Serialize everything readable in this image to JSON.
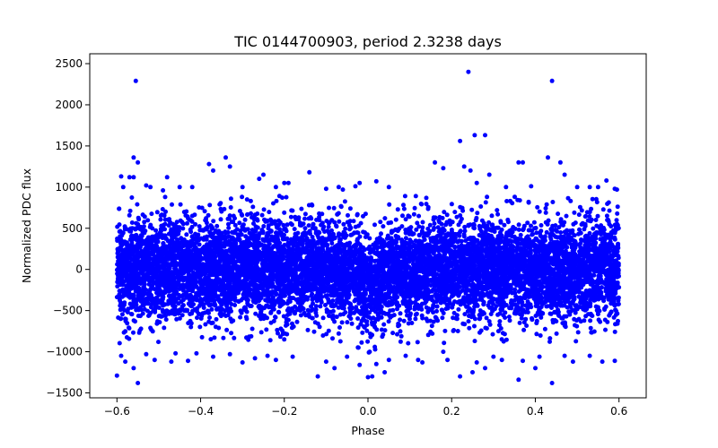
{
  "chart_data": {
    "type": "scatter",
    "title": "TIC 0144700903, period 2.3238 days",
    "xlabel": "Phase",
    "ylabel": "Normalized PDC flux",
    "xlim": [
      -0.665,
      0.665
    ],
    "ylim": [
      -1560,
      2620
    ],
    "xticks": [
      -0.6,
      -0.4,
      -0.2,
      0.0,
      0.2,
      0.4,
      0.6
    ],
    "xtick_labels": [
      "−0.6",
      "−0.4",
      "−0.2",
      "0.0",
      "0.2",
      "0.4",
      "0.6"
    ],
    "yticks": [
      -1500,
      -1000,
      -500,
      0,
      500,
      1000,
      1500,
      2000,
      2500
    ],
    "ytick_labels": [
      "−1500",
      "−1000",
      "−500",
      "0",
      "500",
      "1000",
      "1500",
      "2000",
      "2500"
    ],
    "grid": false,
    "series": [
      {
        "name": "PDC flux",
        "color": "#0000ff",
        "bulk": {
          "count": 9000,
          "x_range": [
            -0.6,
            0.6
          ],
          "sigma": 300,
          "clip": [
            -900,
            900
          ],
          "transit_center": 0.0,
          "transit_half_width": 0.035,
          "transit_depth": 250
        },
        "x": [
          -0.555,
          -0.56,
          -0.59,
          -0.585,
          -0.57,
          -0.56,
          -0.55,
          -0.53,
          -0.52,
          -0.49,
          -0.48,
          -0.45,
          -0.42,
          -0.38,
          -0.37,
          -0.34,
          -0.33,
          -0.3,
          -0.26,
          -0.25,
          -0.22,
          -0.2,
          -0.19,
          -0.14,
          -0.1,
          -0.07,
          -0.06,
          -0.03,
          -0.02,
          0.02,
          0.05,
          0.16,
          0.18,
          0.22,
          0.23,
          0.24,
          0.245,
          0.255,
          0.26,
          0.28,
          0.29,
          0.33,
          0.36,
          0.37,
          0.39,
          0.43,
          0.44,
          0.46,
          0.47,
          0.5,
          0.53,
          0.55,
          0.57,
          0.59,
          0.595,
          -0.6,
          -0.59,
          -0.58,
          -0.56,
          -0.55,
          -0.53,
          -0.51,
          -0.47,
          -0.46,
          -0.43,
          -0.41,
          -0.37,
          -0.33,
          -0.3,
          -0.27,
          -0.24,
          -0.22,
          -0.18,
          -0.12,
          -0.1,
          -0.08,
          -0.05,
          -0.02,
          0.0,
          0.01,
          0.02,
          0.04,
          0.05,
          0.09,
          0.12,
          0.13,
          0.18,
          0.19,
          0.22,
          0.25,
          0.26,
          0.28,
          0.3,
          0.32,
          0.36,
          0.37,
          0.4,
          0.41,
          0.44,
          0.47,
          0.49,
          0.53,
          0.56,
          0.59
        ],
        "y": [
          2290,
          1360,
          1130,
          1000,
          1120,
          1120,
          1300,
          1020,
          1000,
          960,
          1120,
          1000,
          1000,
          1280,
          1200,
          1360,
          1250,
          1000,
          1100,
          1150,
          1000,
          1050,
          1050,
          1180,
          980,
          1000,
          970,
          1010,
          1050,
          1070,
          1000,
          1300,
          1230,
          1560,
          1250,
          2400,
          1200,
          1630,
          1050,
          1630,
          1150,
          1000,
          1300,
          1300,
          1010,
          1360,
          2290,
          1300,
          1150,
          1000,
          1000,
          1000,
          1080,
          980,
          970,
          -1290,
          -1050,
          -1120,
          -1200,
          -1380,
          -1030,
          -1100,
          -1120,
          -1020,
          -1110,
          -1020,
          -1060,
          -1030,
          -1130,
          -1080,
          -1050,
          -1100,
          -1060,
          -1300,
          -1120,
          -1200,
          -1060,
          -1160,
          -1310,
          -1300,
          -1150,
          -1250,
          -1100,
          -1050,
          -1100,
          -1130,
          -1000,
          -1100,
          -1300,
          -1250,
          -1130,
          -1200,
          -1060,
          -1100,
          -1340,
          -1110,
          -1200,
          -1060,
          -1380,
          -1050,
          -1120,
          -1050,
          -1120,
          -1110
        ]
      }
    ]
  }
}
